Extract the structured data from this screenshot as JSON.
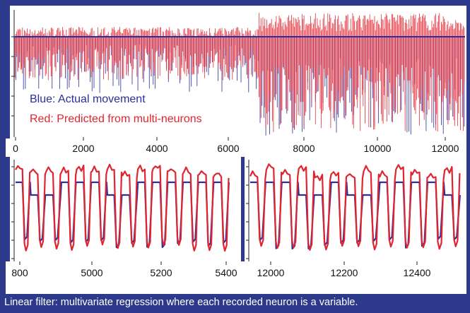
{
  "chart_data": [
    {
      "type": "line",
      "name": "full-session",
      "legend_position": "bottom-left",
      "legend": [
        {
          "label": "Blue: Actual movement",
          "color": "#2b2f9c"
        },
        {
          "label": "Red: Predicted from multi-neurons",
          "color": "#e02530"
        }
      ],
      "x_ticks": [
        "0",
        "2000",
        "4000",
        "6000",
        "8000",
        "10000",
        "12000"
      ],
      "xlim": [
        0,
        12600
      ],
      "grid": false,
      "series": [
        {
          "name": "Blue: Actual movement",
          "color": "#2b2f9c",
          "style": "clamped oscillation, top plateau"
        },
        {
          "name": "Red: Predicted from multi-neurons",
          "color": "#e02530",
          "style": "dense oscillation"
        }
      ]
    },
    {
      "type": "line",
      "name": "zoom-left",
      "x_ticks": [
        "800",
        "5000",
        "5200",
        "5400"
      ],
      "cycles": 14,
      "grid": false
    },
    {
      "type": "line",
      "name": "zoom-right",
      "x_ticks": [
        "12000",
        "12200",
        "12400"
      ],
      "cycles": 13,
      "grid": false
    }
  ],
  "caption": "Linear filter: multivariate regression where each recorded neuron is a variable.",
  "colors": {
    "frame": "#2d3a8c",
    "actual": "#2b2f9c",
    "predicted": "#e02530"
  }
}
